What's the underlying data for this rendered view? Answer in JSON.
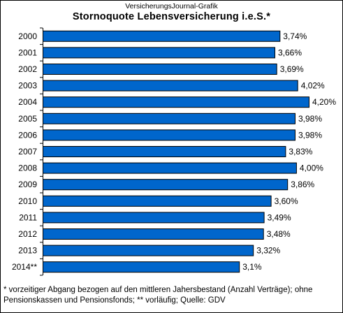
{
  "header": {
    "source_line": "VersicherungsJournal-Grafik"
  },
  "footnote": "* vorzeitiger Abgang bezogen auf den mittleren Jahersbestand (Anzahl Verträge); ohne Pensionskassen und Pensionsfonds; ** vorläufig; Quelle: GDV",
  "chart_data": {
    "type": "bar",
    "orientation": "horizontal",
    "title": "Stornoquote Lebensversicherung i.e.S.*",
    "categories": [
      "2000",
      "2001",
      "2002",
      "2003",
      "2004",
      "2005",
      "2006",
      "2007",
      "2008",
      "2009",
      "2010",
      "2011",
      "2012",
      "2013",
      "2014**"
    ],
    "values": [
      3.74,
      3.66,
      3.69,
      4.02,
      4.2,
      3.98,
      3.98,
      3.83,
      4.0,
      3.86,
      3.6,
      3.49,
      3.48,
      3.32,
      3.1
    ],
    "value_labels": [
      "3,74%",
      "3,66%",
      "3,69%",
      "4,02%",
      "4,20%",
      "3,98%",
      "3,98%",
      "3,83%",
      "4,00%",
      "3,86%",
      "3,60%",
      "3,49%",
      "3,48%",
      "3,32%",
      "3,1%"
    ],
    "unit": "%",
    "xlim": [
      0,
      4.2
    ],
    "grid": false,
    "legend": "none",
    "colors": {
      "bar": "#0066cc",
      "bar_border": "#000000"
    }
  }
}
